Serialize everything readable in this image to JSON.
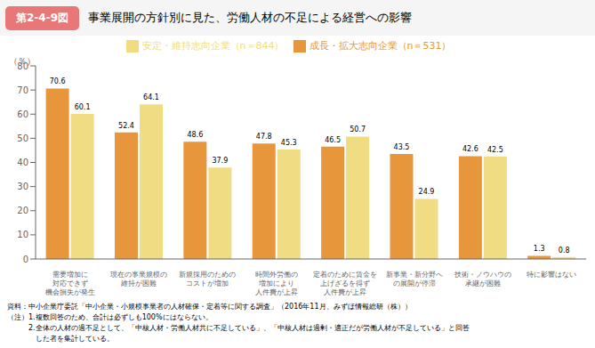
{
  "chart_data": {
    "type": "bar",
    "title": "事業展開の方針別に見た、労働人材の不足による経営への影響",
    "subtitle": "第2-4-9図",
    "y_label": "（％）",
    "categories": [
      "需要増加に\n対応できず\n機会損失が発生",
      "現在の事業規模の\n維持が困難",
      "新規採用のための\nコストが増加",
      "時間外労働の\n増加により\n人件費が上昇",
      "定着のために賃金を\n上げざるを得ず\n人件費が上昇",
      "新事業・新分野へ\nの展開が停滞",
      "技術・ノウハウの\n承継が困難",
      "特に影響はない"
    ],
    "series": [
      {
        "name": "成長・拡大志向企業（n＝531）",
        "color": "#E8963C",
        "values": [
          70.6,
          52.4,
          48.6,
          47.8,
          46.5,
          43.5,
          42.6,
          1.3
        ]
      },
      {
        "name": "安定・維持志向企業（n＝844）",
        "color": "#F0DC82",
        "values": [
          60.1,
          64.1,
          37.9,
          45.3,
          50.7,
          24.9,
          42.5,
          0.8
        ]
      }
    ],
    "ylim": [
      0,
      80
    ],
    "yticks": [
      0,
      10,
      20,
      30,
      40,
      50,
      60,
      70,
      80
    ],
    "grid": false,
    "legend": "top",
    "data_labels": true,
    "annotations": [
      "資料：中小企業庁委託「中小企業・小規模事業者の人材確保・定着等に関する調査」（2016年11月、みずほ情報総研（株））",
      "（注）1.複数回答のため、合計は必ずしも100%にはならない。",
      "　　　2.全体の人材の過不足として、「中核人材・労働人材共に不足している」、「中核人材は過剰・適正だが労働人材が不足している」と回答",
      "　　　　した者を集計している。"
    ]
  }
}
